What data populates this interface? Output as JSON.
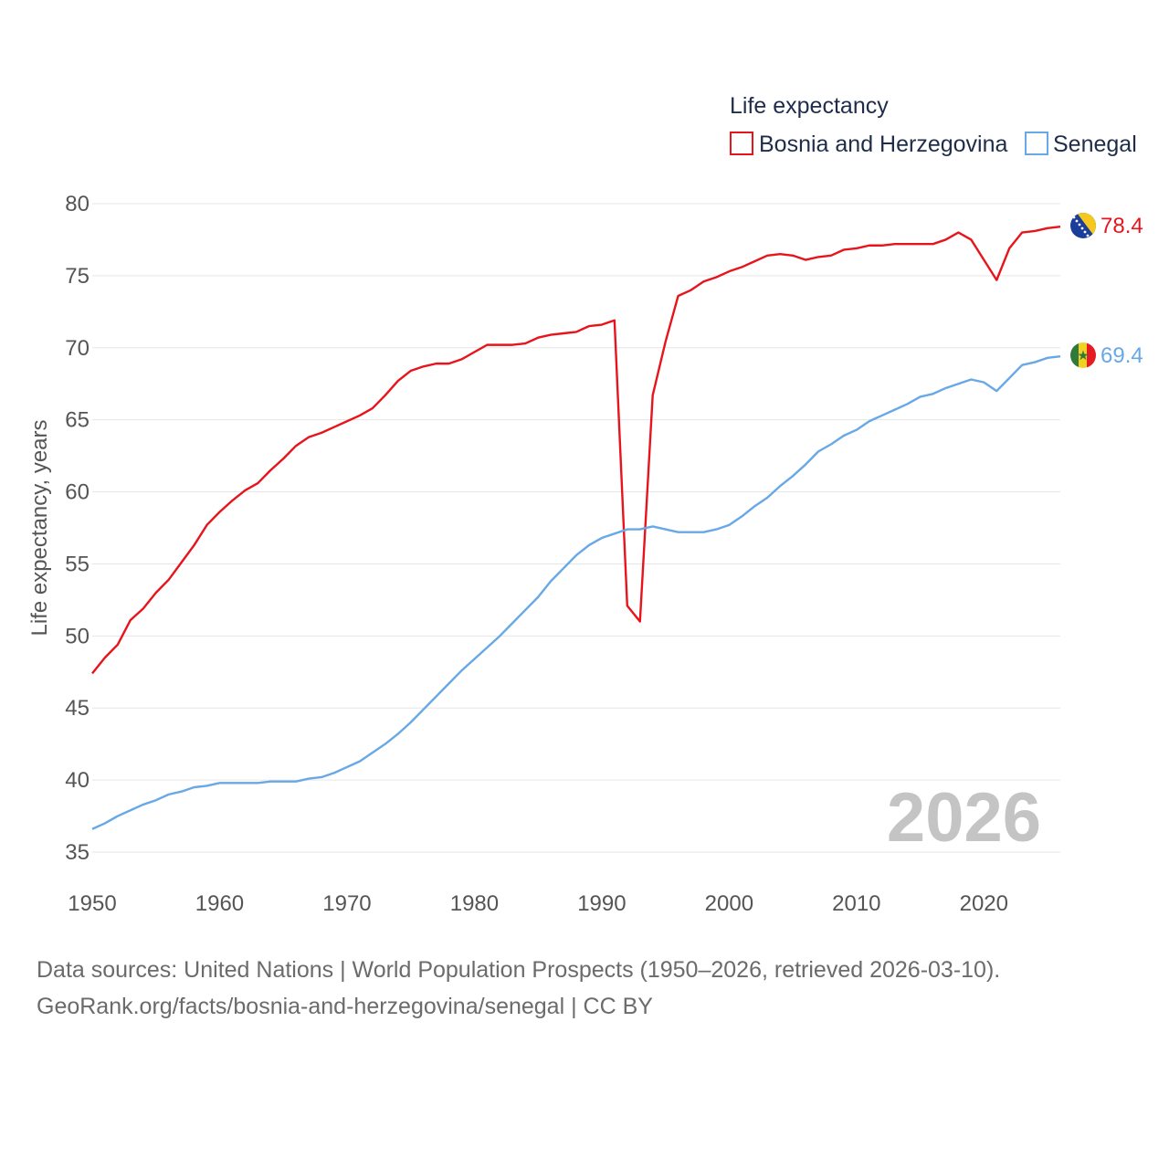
{
  "chart_data": {
    "type": "line",
    "legend_title": "Life expectancy",
    "ylabel": "Life expectancy, years",
    "xlabel": "",
    "xlim": [
      1950,
      2026
    ],
    "ylim": [
      35,
      80
    ],
    "x_ticks": [
      1950,
      1960,
      1970,
      1980,
      1990,
      2000,
      2010,
      2020
    ],
    "y_ticks": [
      35,
      40,
      45,
      50,
      55,
      60,
      65,
      70,
      75,
      80
    ],
    "year_label": "2026",
    "grid": true,
    "legend_position": "top-right",
    "series": [
      {
        "name": "Bosnia and Herzegovina",
        "color": "#e8141b",
        "end_label": "78.4",
        "flag": "flag-bosnia-and-herzegovina",
        "x": [
          1950,
          1951,
          1952,
          1953,
          1954,
          1955,
          1956,
          1957,
          1958,
          1959,
          1960,
          1961,
          1962,
          1963,
          1964,
          1965,
          1966,
          1967,
          1968,
          1969,
          1970,
          1971,
          1972,
          1973,
          1974,
          1975,
          1976,
          1977,
          1978,
          1979,
          1980,
          1981,
          1982,
          1983,
          1984,
          1985,
          1986,
          1987,
          1988,
          1989,
          1990,
          1991,
          1992,
          1993,
          1994,
          1995,
          1996,
          1997,
          1998,
          1999,
          2000,
          2001,
          2002,
          2003,
          2004,
          2005,
          2006,
          2007,
          2008,
          2009,
          2010,
          2011,
          2012,
          2013,
          2014,
          2015,
          2016,
          2017,
          2018,
          2019,
          2020,
          2021,
          2022,
          2023,
          2024,
          2025,
          2026
        ],
        "values": [
          47.4,
          48.5,
          49.4,
          51.1,
          51.9,
          53.0,
          53.9,
          55.1,
          56.3,
          57.7,
          58.6,
          59.4,
          60.1,
          60.6,
          61.5,
          62.3,
          63.2,
          63.8,
          64.1,
          64.5,
          64.9,
          65.3,
          65.8,
          66.7,
          67.7,
          68.4,
          68.7,
          68.9,
          68.9,
          69.2,
          69.7,
          70.2,
          70.2,
          70.2,
          70.3,
          70.7,
          70.9,
          71.0,
          71.1,
          71.5,
          71.6,
          71.9,
          52.1,
          51.0,
          66.7,
          70.4,
          73.6,
          74.0,
          74.6,
          74.9,
          75.3,
          75.6,
          76.0,
          76.4,
          76.5,
          76.4,
          76.1,
          76.3,
          76.4,
          76.8,
          76.9,
          77.1,
          77.1,
          77.2,
          77.2,
          77.2,
          77.2,
          77.5,
          78.0,
          77.5,
          76.1,
          74.7,
          76.9,
          78.0,
          78.1,
          78.3,
          78.4
        ]
      },
      {
        "name": "Senegal",
        "color": "#68a8e6",
        "end_label": "69.4",
        "flag": "flag-senegal",
        "x": [
          1950,
          1951,
          1952,
          1953,
          1954,
          1955,
          1956,
          1957,
          1958,
          1959,
          1960,
          1961,
          1962,
          1963,
          1964,
          1965,
          1966,
          1967,
          1968,
          1969,
          1970,
          1971,
          1972,
          1973,
          1974,
          1975,
          1976,
          1977,
          1978,
          1979,
          1980,
          1981,
          1982,
          1983,
          1984,
          1985,
          1986,
          1987,
          1988,
          1989,
          1990,
          1991,
          1992,
          1993,
          1994,
          1995,
          1996,
          1997,
          1998,
          1999,
          2000,
          2001,
          2002,
          2003,
          2004,
          2005,
          2006,
          2007,
          2008,
          2009,
          2010,
          2011,
          2012,
          2013,
          2014,
          2015,
          2016,
          2017,
          2018,
          2019,
          2020,
          2021,
          2022,
          2023,
          2024,
          2025,
          2026
        ],
        "values": [
          36.6,
          37.0,
          37.5,
          37.9,
          38.3,
          38.6,
          39.0,
          39.2,
          39.5,
          39.6,
          39.8,
          39.8,
          39.8,
          39.8,
          39.9,
          39.9,
          39.9,
          40.1,
          40.2,
          40.5,
          40.9,
          41.3,
          41.9,
          42.5,
          43.2,
          44.0,
          44.9,
          45.8,
          46.7,
          47.6,
          48.4,
          49.2,
          50.0,
          50.9,
          51.8,
          52.7,
          53.8,
          54.7,
          55.6,
          56.3,
          56.8,
          57.1,
          57.4,
          57.4,
          57.6,
          57.4,
          57.2,
          57.2,
          57.2,
          57.4,
          57.7,
          58.3,
          59.0,
          59.6,
          60.4,
          61.1,
          61.9,
          62.8,
          63.3,
          63.9,
          64.3,
          64.9,
          65.3,
          65.7,
          66.1,
          66.6,
          66.8,
          67.2,
          67.5,
          67.8,
          67.6,
          67.0,
          67.9,
          68.8,
          69.0,
          69.3,
          69.4
        ]
      }
    ]
  },
  "source": {
    "line1": "Data sources: United Nations | World Population Prospects (1950–2026, retrieved 2026-03-10).",
    "line2": "GeoRank.org/facts/bosnia-and-herzegovina/senegal | CC BY"
  }
}
